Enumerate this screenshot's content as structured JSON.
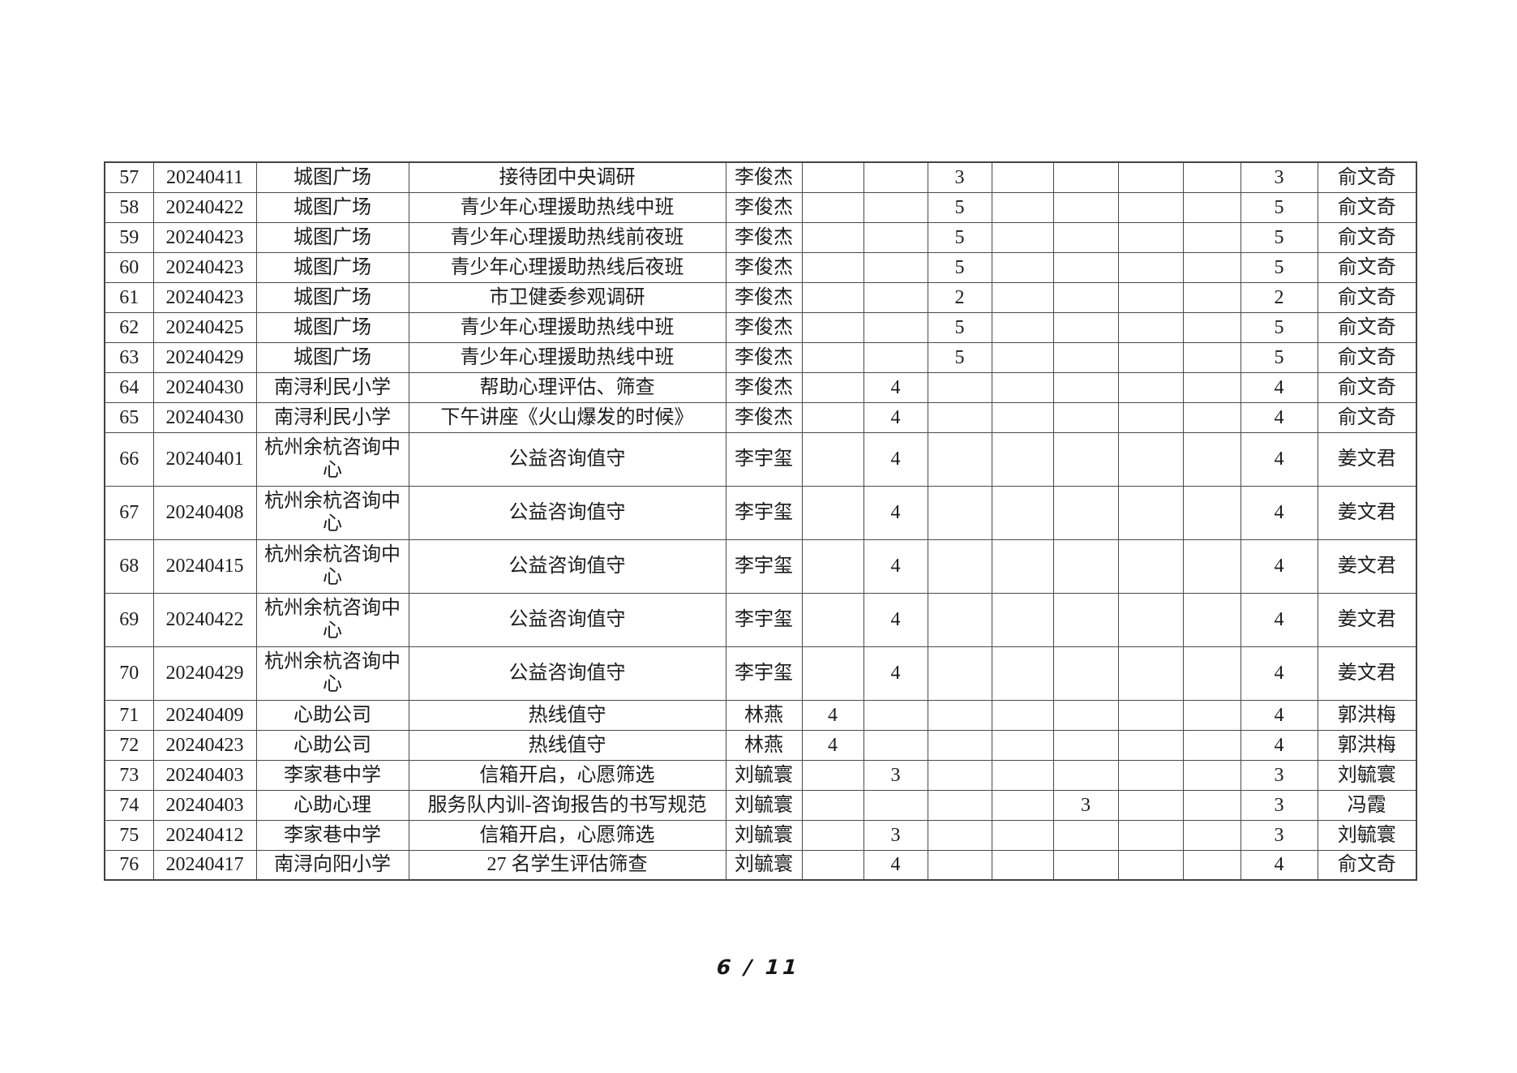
{
  "page": {
    "number_label": "6 / 11"
  },
  "table": {
    "columns": [
      "num",
      "date",
      "location",
      "activity",
      "person",
      "c1",
      "c2",
      "c3",
      "c4",
      "c5",
      "c6",
      "c7",
      "total",
      "auditor"
    ],
    "rows": [
      {
        "num": "57",
        "date": "20240411",
        "location": "城图广场",
        "activity": "接待团中央调研",
        "person": "李俊杰",
        "c1": "",
        "c2": "",
        "c3": "3",
        "c4": "",
        "c5": "",
        "c6": "",
        "c7": "",
        "total": "3",
        "auditor": "俞文奇"
      },
      {
        "num": "58",
        "date": "20240422",
        "location": "城图广场",
        "activity": "青少年心理援助热线中班",
        "person": "李俊杰",
        "c1": "",
        "c2": "",
        "c3": "5",
        "c4": "",
        "c5": "",
        "c6": "",
        "c7": "",
        "total": "5",
        "auditor": "俞文奇"
      },
      {
        "num": "59",
        "date": "20240423",
        "location": "城图广场",
        "activity": "青少年心理援助热线前夜班",
        "person": "李俊杰",
        "c1": "",
        "c2": "",
        "c3": "5",
        "c4": "",
        "c5": "",
        "c6": "",
        "c7": "",
        "total": "5",
        "auditor": "俞文奇"
      },
      {
        "num": "60",
        "date": "20240423",
        "location": "城图广场",
        "activity": "青少年心理援助热线后夜班",
        "person": "李俊杰",
        "c1": "",
        "c2": "",
        "c3": "5",
        "c4": "",
        "c5": "",
        "c6": "",
        "c7": "",
        "total": "5",
        "auditor": "俞文奇"
      },
      {
        "num": "61",
        "date": "20240423",
        "location": "城图广场",
        "activity": "市卫健委参观调研",
        "person": "李俊杰",
        "c1": "",
        "c2": "",
        "c3": "2",
        "c4": "",
        "c5": "",
        "c6": "",
        "c7": "",
        "total": "2",
        "auditor": "俞文奇"
      },
      {
        "num": "62",
        "date": "20240425",
        "location": "城图广场",
        "activity": "青少年心理援助热线中班",
        "person": "李俊杰",
        "c1": "",
        "c2": "",
        "c3": "5",
        "c4": "",
        "c5": "",
        "c6": "",
        "c7": "",
        "total": "5",
        "auditor": "俞文奇"
      },
      {
        "num": "63",
        "date": "20240429",
        "location": "城图广场",
        "activity": "青少年心理援助热线中班",
        "person": "李俊杰",
        "c1": "",
        "c2": "",
        "c3": "5",
        "c4": "",
        "c5": "",
        "c6": "",
        "c7": "",
        "total": "5",
        "auditor": "俞文奇"
      },
      {
        "num": "64",
        "date": "20240430",
        "location": "南浔利民小学",
        "activity": "帮助心理评估、筛查",
        "person": "李俊杰",
        "c1": "",
        "c2": "4",
        "c3": "",
        "c4": "",
        "c5": "",
        "c6": "",
        "c7": "",
        "total": "4",
        "auditor": "俞文奇"
      },
      {
        "num": "65",
        "date": "20240430",
        "location": "南浔利民小学",
        "activity": "下午讲座《火山爆发的时候》",
        "person": "李俊杰",
        "c1": "",
        "c2": "4",
        "c3": "",
        "c4": "",
        "c5": "",
        "c6": "",
        "c7": "",
        "total": "4",
        "auditor": "俞文奇"
      },
      {
        "num": "66",
        "date": "20240401",
        "location": "杭州余杭咨询中心",
        "activity": "公益咨询值守",
        "person": "李宇玺",
        "c1": "",
        "c2": "4",
        "c3": "",
        "c4": "",
        "c5": "",
        "c6": "",
        "c7": "",
        "total": "4",
        "auditor": "姜文君"
      },
      {
        "num": "67",
        "date": "20240408",
        "location": "杭州余杭咨询中心",
        "activity": "公益咨询值守",
        "person": "李宇玺",
        "c1": "",
        "c2": "4",
        "c3": "",
        "c4": "",
        "c5": "",
        "c6": "",
        "c7": "",
        "total": "4",
        "auditor": "姜文君"
      },
      {
        "num": "68",
        "date": "20240415",
        "location": "杭州余杭咨询中心",
        "activity": "公益咨询值守",
        "person": "李宇玺",
        "c1": "",
        "c2": "4",
        "c3": "",
        "c4": "",
        "c5": "",
        "c6": "",
        "c7": "",
        "total": "4",
        "auditor": "姜文君"
      },
      {
        "num": "69",
        "date": "20240422",
        "location": "杭州余杭咨询中心",
        "activity": "公益咨询值守",
        "person": "李宇玺",
        "c1": "",
        "c2": "4",
        "c3": "",
        "c4": "",
        "c5": "",
        "c6": "",
        "c7": "",
        "total": "4",
        "auditor": "姜文君"
      },
      {
        "num": "70",
        "date": "20240429",
        "location": "杭州余杭咨询中心",
        "activity": "公益咨询值守",
        "person": "李宇玺",
        "c1": "",
        "c2": "4",
        "c3": "",
        "c4": "",
        "c5": "",
        "c6": "",
        "c7": "",
        "total": "4",
        "auditor": "姜文君"
      },
      {
        "num": "71",
        "date": "20240409",
        "location": "心助公司",
        "activity": "热线值守",
        "person": "林燕",
        "c1": "4",
        "c2": "",
        "c3": "",
        "c4": "",
        "c5": "",
        "c6": "",
        "c7": "",
        "total": "4",
        "auditor": "郭洪梅"
      },
      {
        "num": "72",
        "date": "20240423",
        "location": "心助公司",
        "activity": "热线值守",
        "person": "林燕",
        "c1": "4",
        "c2": "",
        "c3": "",
        "c4": "",
        "c5": "",
        "c6": "",
        "c7": "",
        "total": "4",
        "auditor": "郭洪梅"
      },
      {
        "num": "73",
        "date": "20240403",
        "location": "李家巷中学",
        "activity": "信箱开启，心愿筛选",
        "person": "刘毓寰",
        "c1": "",
        "c2": "3",
        "c3": "",
        "c4": "",
        "c5": "",
        "c6": "",
        "c7": "",
        "total": "3",
        "auditor": "刘毓寰"
      },
      {
        "num": "74",
        "date": "20240403",
        "location": "心助心理",
        "activity": "服务队内训-咨询报告的书写规范",
        "person": "刘毓寰",
        "c1": "",
        "c2": "",
        "c3": "",
        "c4": "",
        "c5": "3",
        "c6": "",
        "c7": "",
        "total": "3",
        "auditor": "冯霞"
      },
      {
        "num": "75",
        "date": "20240412",
        "location": "李家巷中学",
        "activity": "信箱开启，心愿筛选",
        "person": "刘毓寰",
        "c1": "",
        "c2": "3",
        "c3": "",
        "c4": "",
        "c5": "",
        "c6": "",
        "c7": "",
        "total": "3",
        "auditor": "刘毓寰"
      },
      {
        "num": "76",
        "date": "20240417",
        "location": "南浔向阳小学",
        "activity": "27 名学生评估筛查",
        "person": "刘毓寰",
        "c1": "",
        "c2": "4",
        "c3": "",
        "c4": "",
        "c5": "",
        "c6": "",
        "c7": "",
        "total": "4",
        "auditor": "俞文奇"
      }
    ]
  }
}
